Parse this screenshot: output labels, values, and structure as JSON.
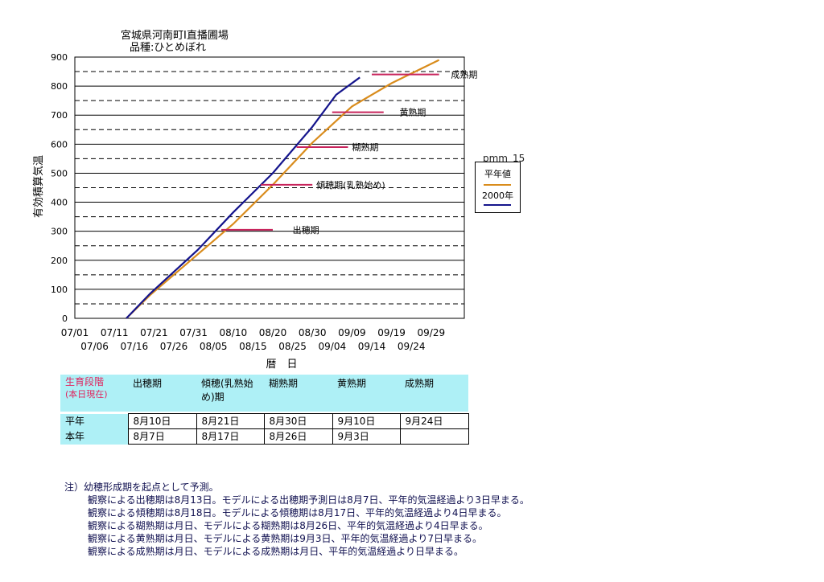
{
  "title_line1": "宮城県河南町I直播圃場",
  "title_line2": "品種:ひとめぼれ",
  "chart_data": {
    "type": "line",
    "ylabel": "有効積算気温",
    "xlabel": "暦　日",
    "ylim": [
      0,
      900
    ],
    "yticks": [
      0,
      100,
      200,
      300,
      400,
      500,
      600,
      700,
      800,
      900
    ],
    "xticks_top": [
      "07/01",
      "07/11",
      "07/21",
      "07/31",
      "08/10",
      "08/20",
      "08/30",
      "09/09",
      "09/19",
      "09/29"
    ],
    "xticks_bottom": [
      "07/06",
      "07/16",
      "07/26",
      "08/05",
      "08/15",
      "08/25",
      "09/04",
      "09/14",
      "09/24"
    ],
    "grid": "solid at 100s, dashed at 50s",
    "series": [
      {
        "name": "平年値",
        "color": "#d98c1c",
        "points": [
          [
            "07/14",
            0
          ],
          [
            "07/20",
            80
          ],
          [
            "08/01",
            220
          ],
          [
            "08/10",
            325
          ],
          [
            "08/20",
            460
          ],
          [
            "08/30",
            605
          ],
          [
            "09/09",
            730
          ],
          [
            "09/19",
            810
          ],
          [
            "10/01",
            890
          ]
        ]
      },
      {
        "name": "2000年",
        "color": "#14148c",
        "points": [
          [
            "07/14",
            0
          ],
          [
            "07/20",
            85
          ],
          [
            "08/01",
            235
          ],
          [
            "08/10",
            365
          ],
          [
            "08/20",
            500
          ],
          [
            "08/30",
            660
          ],
          [
            "09/05",
            770
          ],
          [
            "09/11",
            830
          ]
        ]
      }
    ],
    "stage_marks": [
      {
        "label": "出穂期",
        "y": 305,
        "x_from": "08/07",
        "x_to": "08/20",
        "label_at": "08/25"
      },
      {
        "label": "傾穂期(乳熟始め)",
        "y": 460,
        "x_from": "08/17",
        "x_to": "08/30",
        "label_at": "08/31"
      },
      {
        "label": "糊熟期",
        "y": 590,
        "x_from": "08/26",
        "x_to": "09/08",
        "label_at": "09/09"
      },
      {
        "label": "黄熟期",
        "y": 710,
        "x_from": "09/04",
        "x_to": "09/17",
        "label_at": "09/21"
      },
      {
        "label": "成熟期",
        "y": 840,
        "x_from": "09/14",
        "x_to": "10/01",
        "label_at": "10/04"
      }
    ],
    "stage_mark_color": "#c8245c",
    "legend_title": "pmm_15",
    "legend_placement": "right"
  },
  "table": {
    "header_first": "生育段階",
    "header_first_sub": "(本日現在)",
    "headers": [
      "出穂期",
      "傾穂(乳熟始め)期",
      "糊熟期",
      "黄熟期",
      "成熟期"
    ],
    "rows": [
      {
        "label": "平年",
        "values": [
          "8月10日",
          "8月21日",
          "8月30日",
          "9月10日",
          "9月24日"
        ]
      },
      {
        "label": "本年",
        "values": [
          "8月7日",
          "8月17日",
          "8月26日",
          "9月3日",
          ""
        ]
      }
    ]
  },
  "notes": [
    "注）幼穂形成期を起点として予測。",
    "観察による出穂期は8月13日。モデルによる出穂期予測日は8月7日、平年的気温経過より3日早まる。",
    "観察による傾穂期は8月18日。モデルによる傾穂期は8月17日、平年的気温経過より4日早まる。",
    "観察による糊熟期は月日、モデルによる糊熟期は8月26日、平年的気温経過より4日早まる。",
    "観察による黄熟期は月日、モデルによる黄熟期は9月3日、平年的気温経過より7日早まる。",
    "観察による成熟期は月日、モデルによる成熟期は月日、平年的気温経過より日早まる。"
  ]
}
